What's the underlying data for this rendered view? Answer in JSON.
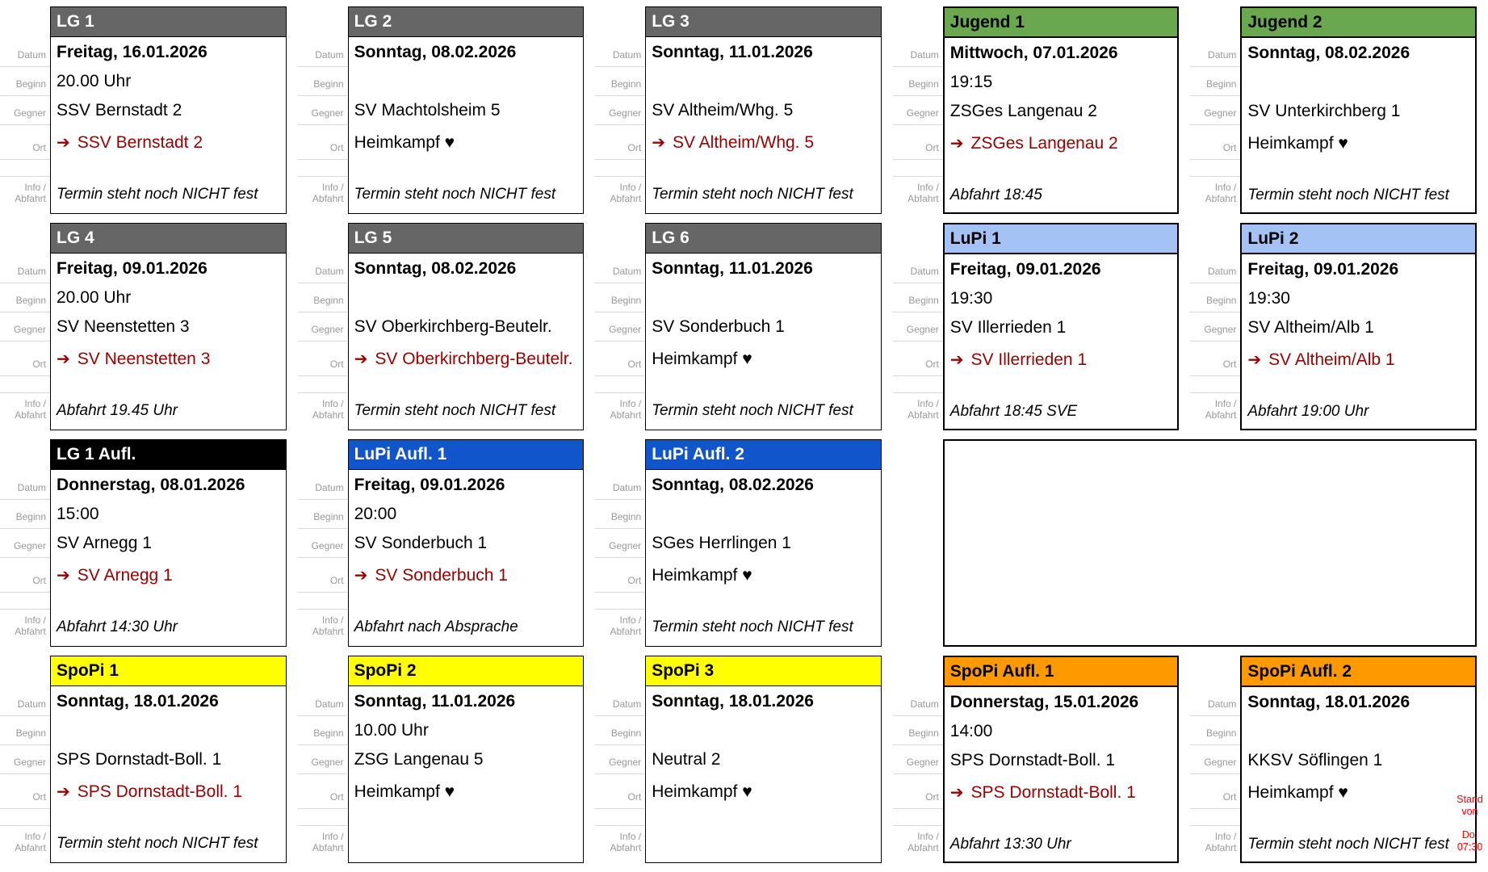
{
  "labels": {
    "datum": "Datum",
    "beginn": "Beginn",
    "gegner": "Gegner",
    "ort": "Ort",
    "info_line1": "Info /",
    "info_line2": "Abfahrt"
  },
  "icons": {
    "away_arrow": "➔"
  },
  "status_note": {
    "line1": "Stand von",
    "line2": "Do. 07:30"
  },
  "colors": {
    "away_color": "#990000",
    "label_color": "#999999",
    "gridline": "#d9d9d9",
    "note_color": "#ff0000",
    "header_colors": {
      "gray": {
        "bg": "#666666",
        "fg": "#ffffff"
      },
      "green": {
        "bg": "#6aa84f",
        "fg": "#000000"
      },
      "lightblue": {
        "bg": "#a4c2f4",
        "fg": "#000000"
      },
      "black": {
        "bg": "#000000",
        "fg": "#ffffff"
      },
      "blue": {
        "bg": "#1155cc",
        "fg": "#ffffff"
      },
      "yellow": {
        "bg": "#ffff00",
        "fg": "#000000"
      },
      "orange": {
        "bg": "#ff9900",
        "fg": "#000000"
      }
    }
  },
  "cards": [
    {
      "id": "lg-1",
      "title": "LG 1",
      "header": "gray",
      "border": "thin",
      "datum": "Freitag, 16.01.2026",
      "beginn": "20.00 Uhr",
      "gegner": "SSV Bernstadt 2",
      "ort_type": "away",
      "ort": "SSV Bernstadt 2",
      "info": "Termin steht noch NICHT fest"
    },
    {
      "id": "lg-2",
      "title": "LG 2",
      "header": "gray",
      "border": "thin",
      "datum": "Sonntag, 08.02.2026",
      "beginn": "",
      "gegner": "SV Machtolsheim 5",
      "ort_type": "home",
      "ort": "Heimkampf ♥",
      "info": "Termin steht noch NICHT fest"
    },
    {
      "id": "lg-3",
      "title": "LG 3",
      "header": "gray",
      "border": "thin",
      "datum": "Sonntag, 11.01.2026",
      "beginn": "",
      "gegner": "SV Altheim/Whg. 5",
      "ort_type": "away",
      "ort": "SV Altheim/Whg. 5",
      "info": "Termin steht noch NICHT fest"
    },
    {
      "id": "jugend-1",
      "title": "Jugend 1",
      "header": "green",
      "border": "medium",
      "datum": "Mittwoch, 07.01.2026",
      "beginn": "19:15",
      "gegner": "ZSGes Langenau 2",
      "ort_type": "away",
      "ort": "ZSGes Langenau 2",
      "info": "Abfahrt 18:45"
    },
    {
      "id": "jugend-2",
      "title": "Jugend 2",
      "header": "green",
      "border": "medium",
      "datum": "Sonntag, 08.02.2026",
      "beginn": "",
      "gegner": "SV Unterkirchberg 1",
      "ort_type": "home",
      "ort": "Heimkampf ♥",
      "info": "Termin steht noch NICHT fest"
    },
    {
      "id": "lg-4",
      "title": "LG 4",
      "header": "gray",
      "border": "thin",
      "datum": "Freitag, 09.01.2026",
      "beginn": "20.00 Uhr",
      "gegner": "SV Neenstetten 3",
      "ort_type": "away",
      "ort": "SV Neenstetten 3",
      "info": "Abfahrt 19.45 Uhr"
    },
    {
      "id": "lg-5",
      "title": "LG 5",
      "header": "gray",
      "border": "thin",
      "datum": "Sonntag, 08.02.2026",
      "beginn": "",
      "gegner": "SV Oberkirchberg-Beutelr.",
      "ort_type": "away",
      "ort": "SV Oberkirchberg-Beutelr.",
      "info": "Termin steht noch NICHT fest"
    },
    {
      "id": "lg-6",
      "title": "LG 6",
      "header": "gray",
      "border": "thin",
      "datum": "Sonntag, 11.01.2026",
      "beginn": "",
      "gegner": "SV Sonderbuch 1",
      "ort_type": "home",
      "ort": "Heimkampf ♥",
      "info": "Termin steht noch NICHT fest"
    },
    {
      "id": "lupi-1",
      "title": "LuPi 1",
      "header": "lightblue",
      "border": "medium",
      "datum": "Freitag, 09.01.2026",
      "beginn": "19:30",
      "gegner": "SV Illerrieden 1",
      "ort_type": "away",
      "ort": "SV Illerrieden 1",
      "info": "Abfahrt 18:45 SVE"
    },
    {
      "id": "lupi-2",
      "title": "LuPi 2",
      "header": "lightblue",
      "border": "medium",
      "datum": "Freitag, 09.01.2026",
      "beginn": "19:30",
      "gegner": "SV Altheim/Alb 1",
      "ort_type": "away",
      "ort": "SV Altheim/Alb 1",
      "info": "Abfahrt 19:00 Uhr"
    },
    {
      "id": "lg-1-aufl",
      "title": "LG 1 Aufl.",
      "header": "black",
      "border": "thin",
      "datum": "Donnerstag, 08.01.2026",
      "beginn": "15:00",
      "gegner": "SV Arnegg 1",
      "ort_type": "away",
      "ort": "SV Arnegg 1",
      "info": "Abfahrt 14:30 Uhr"
    },
    {
      "id": "lupi-aufl-1",
      "title": "LuPi Aufl. 1",
      "header": "blue",
      "border": "thin",
      "datum": "Freitag, 09.01.2026",
      "beginn": "20:00",
      "gegner": "SV Sonderbuch 1",
      "ort_type": "away",
      "ort": "SV Sonderbuch 1",
      "info": "Abfahrt nach Absprache"
    },
    {
      "id": "lupi-aufl-2",
      "title": "LuPi Aufl. 2",
      "header": "blue",
      "border": "thin",
      "datum": "Sonntag, 08.02.2026",
      "beginn": "",
      "gegner": "SGes Herrlingen 1",
      "ort_type": "home",
      "ort": "Heimkampf ♥",
      "info": "Termin steht noch NICHT fest"
    },
    {
      "type": "empty",
      "id": "empty-slot",
      "span": 2,
      "border": "medium"
    },
    {
      "id": "spopi-1",
      "title": "SpoPi 1",
      "header": "yellow",
      "border": "thin",
      "datum": "Sonntag, 18.01.2026",
      "beginn": "",
      "gegner": "SPS Dornstadt-Boll. 1",
      "ort_type": "away",
      "ort": "SPS Dornstadt-Boll. 1",
      "info": "Termin steht noch NICHT fest"
    },
    {
      "id": "spopi-2",
      "title": "SpoPi 2",
      "header": "yellow",
      "border": "thin",
      "datum": "Sonntag, 11.01.2026",
      "beginn": "10.00 Uhr",
      "gegner": "ZSG Langenau 5",
      "ort_type": "home",
      "ort": "Heimkampf ♥",
      "info": ""
    },
    {
      "id": "spopi-3",
      "title": "SpoPi 3",
      "header": "yellow",
      "border": "thin",
      "datum": "Sonntag, 18.01.2026",
      "beginn": "",
      "gegner": "Neutral 2",
      "ort_type": "home",
      "ort": "Heimkampf ♥",
      "info": ""
    },
    {
      "id": "spopi-aufl-1",
      "title": "SpoPi Aufl. 1",
      "header": "orange",
      "border": "medium",
      "datum": "Donnerstag, 15.01.2026",
      "beginn": "14:00",
      "gegner": "SPS Dornstadt-Boll. 1",
      "ort_type": "away",
      "ort": "SPS Dornstadt-Boll. 1",
      "info": "Abfahrt 13:30 Uhr"
    },
    {
      "id": "spopi-aufl-2",
      "title": "SpoPi Aufl. 2",
      "header": "orange",
      "border": "medium",
      "datum": "Sonntag, 18.01.2026",
      "beginn": "",
      "gegner": "KKSV Söflingen 1",
      "ort_type": "home",
      "ort": "Heimkampf ♥",
      "info": "Termin steht noch NICHT fest"
    }
  ]
}
